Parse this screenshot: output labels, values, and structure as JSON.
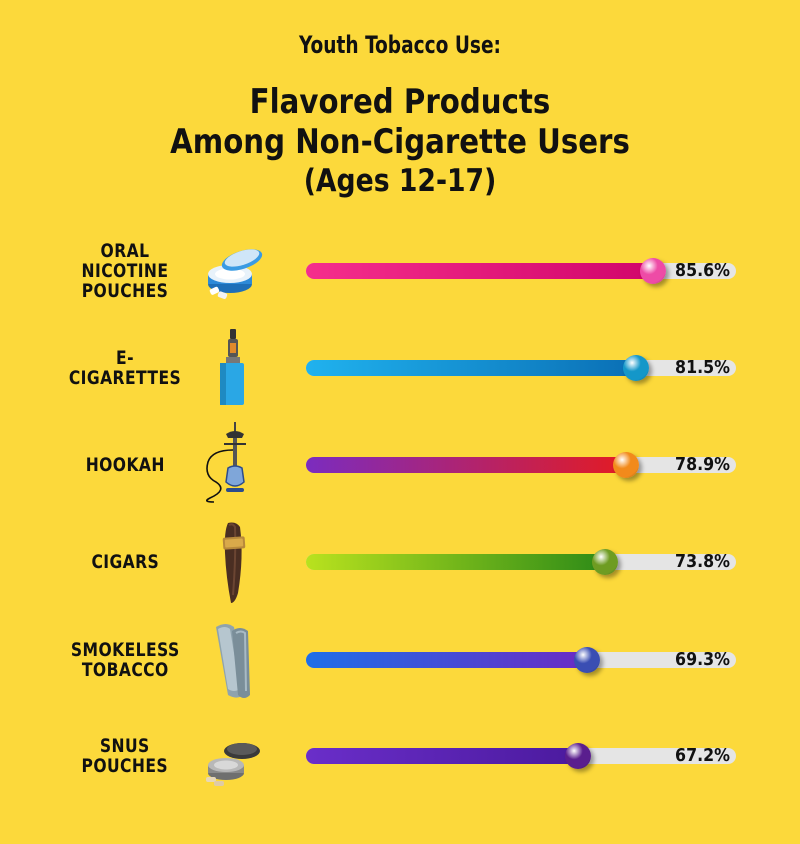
{
  "chart_data": {
    "type": "bar",
    "pretitle": "Youth Tobacco Use:",
    "title_line1": "Flavored Products",
    "title_line2": "Among Non-Cigarette Users",
    "subtitle": "(Ages 12-17)",
    "unit": "%",
    "xlim": [
      0,
      100
    ],
    "categories": [
      "ORAL NICOTINE POUCHES",
      "E-CIGARETTES",
      "HOOKAH",
      "CIGARS",
      "SMOKELESS TOBACCO",
      "SNUS POUCHES"
    ],
    "values": [
      85.6,
      81.5,
      78.9,
      73.8,
      69.3,
      67.2
    ],
    "value_labels": [
      "85.6%",
      "81.5%",
      "78.9%",
      "73.8%",
      "69.3%",
      "67.2%"
    ],
    "icons": [
      "nicotine-pouch-tin-icon",
      "vape-mod-icon",
      "hookah-icon",
      "cigar-icon",
      "smokeless-tobacco-can-icon",
      "snus-tin-icon"
    ],
    "bar_gradients": [
      [
        "#F52E8C",
        "#D1056B"
      ],
      [
        "#20B2EE",
        "#0A6FB5"
      ],
      [
        "#7B2CBF",
        "#E31B23"
      ],
      [
        "#B9E21E",
        "#2E8B17"
      ],
      [
        "#1E6FE8",
        "#6B2BC4"
      ],
      [
        "#6A2EC9",
        "#4B1A9E"
      ]
    ],
    "ball_colors": [
      "#EE4BA6",
      "#1497C9",
      "#F28A1B",
      "#6E9C22",
      "#3A4EB3",
      "#5A1E8E"
    ],
    "track_color": "#E5E5E5",
    "background": "#FCD93B"
  }
}
